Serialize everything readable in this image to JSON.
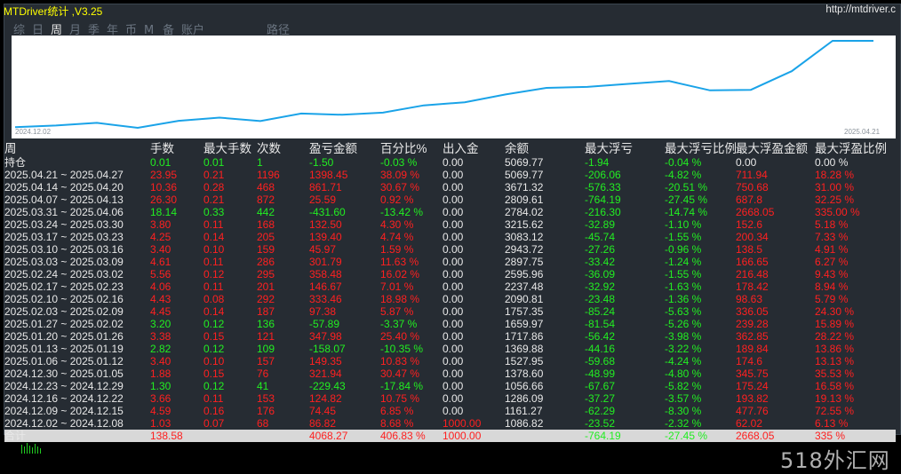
{
  "window": {
    "title": "MTDriver统计 ,V3.25",
    "url": "http://mtdriver.c"
  },
  "tabs": [
    "综",
    "日",
    "周",
    "月",
    "季",
    "年",
    "币",
    "M",
    "备",
    "账户"
  ],
  "active_tab": "周",
  "tab_routes": "路径",
  "chart": {
    "date_start": "2024.12.02",
    "date_end": "2025.04.21",
    "line_color": "#1aa3e8",
    "equity": [
      1086.82,
      1161.27,
      1286.09,
      1056.66,
      1378.6,
      1527.95,
      1369.88,
      1717.86,
      1659.97,
      1757.35,
      2090.81,
      2237.48,
      2595.96,
      2897.75,
      2943.72,
      3083.12,
      3215.62,
      2784.02,
      2809.61,
      3671.32,
      5069.77,
      5069.77
    ]
  },
  "table": {
    "headers": [
      "周",
      "手数",
      "最大手数",
      "次数",
      "盈亏金额",
      "百分比%",
      "出入金",
      "余额",
      "最大浮亏",
      "最大浮亏比例",
      "最大浮盈金额",
      "最大浮盈比例"
    ],
    "rows": [
      {
        "c": [
          "持仓",
          "0.01",
          "0.01",
          "1",
          "-1.50",
          "-0.03 %",
          "0.00",
          "5069.77",
          "-1.94",
          "-0.04 %",
          "0.00",
          "0.00 %"
        ],
        "k": [
          "w",
          "g",
          "g",
          "g",
          "g",
          "g",
          "w",
          "w",
          "g",
          "g",
          "w",
          "w"
        ]
      },
      {
        "c": [
          "2025.04.21 ~ 2025.04.27",
          "23.95",
          "0.21",
          "1196",
          "1398.45",
          "38.09 %",
          "0.00",
          "5069.77",
          "-206.06",
          "-4.82 %",
          "711.94",
          "18.28 %"
        ],
        "k": [
          "w",
          "r",
          "r",
          "r",
          "r",
          "r",
          "w",
          "w",
          "g",
          "g",
          "r",
          "r"
        ]
      },
      {
        "c": [
          "2025.04.14 ~ 2025.04.20",
          "10.36",
          "0.28",
          "468",
          "861.71",
          "30.67 %",
          "0.00",
          "3671.32",
          "-576.33",
          "-20.51 %",
          "750.68",
          "31.00 %"
        ],
        "k": [
          "w",
          "r",
          "r",
          "r",
          "r",
          "r",
          "w",
          "w",
          "g",
          "g",
          "r",
          "r"
        ]
      },
      {
        "c": [
          "2025.04.07 ~ 2025.04.13",
          "26.30",
          "0.21",
          "872",
          "25.59",
          "0.92 %",
          "0.00",
          "2809.61",
          "-764.19",
          "-27.45 %",
          "687.8",
          "32.25 %"
        ],
        "k": [
          "w",
          "r",
          "r",
          "r",
          "r",
          "r",
          "w",
          "w",
          "g",
          "g",
          "r",
          "r"
        ]
      },
      {
        "c": [
          "2025.03.31 ~ 2025.04.06",
          "18.14",
          "0.33",
          "442",
          "-431.60",
          "-13.42 %",
          "0.00",
          "2784.02",
          "-216.30",
          "-14.74 %",
          "2668.05",
          "335.00 %"
        ],
        "k": [
          "w",
          "g",
          "g",
          "g",
          "g",
          "g",
          "w",
          "w",
          "g",
          "g",
          "r",
          "r"
        ]
      },
      {
        "c": [
          "2025.03.24 ~ 2025.03.30",
          "3.80",
          "0.11",
          "168",
          "132.50",
          "4.30 %",
          "0.00",
          "3215.62",
          "-32.89",
          "-1.10 %",
          "152.6",
          "5.18 %"
        ],
        "k": [
          "w",
          "r",
          "r",
          "r",
          "r",
          "r",
          "w",
          "w",
          "g",
          "g",
          "r",
          "r"
        ]
      },
      {
        "c": [
          "2025.03.17 ~ 2025.03.23",
          "4.25",
          "0.14",
          "205",
          "139.40",
          "4.74 %",
          "0.00",
          "3083.12",
          "-45.74",
          "-1.55 %",
          "200.34",
          "7.33 %"
        ],
        "k": [
          "w",
          "r",
          "r",
          "r",
          "r",
          "r",
          "w",
          "w",
          "g",
          "g",
          "r",
          "r"
        ]
      },
      {
        "c": [
          "2025.03.10 ~ 2025.03.16",
          "3.40",
          "0.10",
          "159",
          "45.97",
          "1.59 %",
          "0.00",
          "2943.72",
          "-27.26",
          "-0.96 %",
          "138.5",
          "4.91 %"
        ],
        "k": [
          "w",
          "r",
          "r",
          "r",
          "r",
          "r",
          "w",
          "w",
          "g",
          "g",
          "r",
          "r"
        ]
      },
      {
        "c": [
          "2025.03.03 ~ 2025.03.09",
          "4.61",
          "0.11",
          "286",
          "301.79",
          "11.63 %",
          "0.00",
          "2897.75",
          "-33.42",
          "-1.24 %",
          "166.65",
          "6.27 %"
        ],
        "k": [
          "w",
          "r",
          "r",
          "r",
          "r",
          "r",
          "w",
          "w",
          "g",
          "g",
          "r",
          "r"
        ]
      },
      {
        "c": [
          "2025.02.24 ~ 2025.03.02",
          "5.56",
          "0.12",
          "295",
          "358.48",
          "16.02 %",
          "0.00",
          "2595.96",
          "-36.09",
          "-1.55 %",
          "216.48",
          "9.43 %"
        ],
        "k": [
          "w",
          "r",
          "r",
          "r",
          "r",
          "r",
          "w",
          "w",
          "g",
          "g",
          "r",
          "r"
        ]
      },
      {
        "c": [
          "2025.02.17 ~ 2025.02.23",
          "4.06",
          "0.11",
          "201",
          "146.67",
          "7.01 %",
          "0.00",
          "2237.48",
          "-32.92",
          "-1.63 %",
          "178.42",
          "8.94 %"
        ],
        "k": [
          "w",
          "r",
          "r",
          "r",
          "r",
          "r",
          "w",
          "w",
          "g",
          "g",
          "r",
          "r"
        ]
      },
      {
        "c": [
          "2025.02.10 ~ 2025.02.16",
          "4.43",
          "0.08",
          "292",
          "333.46",
          "18.98 %",
          "0.00",
          "2090.81",
          "-23.48",
          "-1.36 %",
          "98.63",
          "5.79 %"
        ],
        "k": [
          "w",
          "r",
          "r",
          "r",
          "r",
          "r",
          "w",
          "w",
          "g",
          "g",
          "r",
          "r"
        ]
      },
      {
        "c": [
          "2025.02.03 ~ 2025.02.09",
          "4.45",
          "0.14",
          "187",
          "97.38",
          "5.87 %",
          "0.00",
          "1757.35",
          "-85.24",
          "-5.63 %",
          "336.05",
          "24.30 %"
        ],
        "k": [
          "w",
          "r",
          "r",
          "r",
          "r",
          "r",
          "w",
          "w",
          "g",
          "g",
          "r",
          "r"
        ]
      },
      {
        "c": [
          "2025.01.27 ~ 2025.02.02",
          "3.20",
          "0.12",
          "136",
          "-57.89",
          "-3.37 %",
          "0.00",
          "1659.97",
          "-81.54",
          "-5.26 %",
          "239.28",
          "15.89 %"
        ],
        "k": [
          "w",
          "g",
          "g",
          "g",
          "g",
          "g",
          "w",
          "w",
          "g",
          "g",
          "r",
          "r"
        ]
      },
      {
        "c": [
          "2025.01.20 ~ 2025.01.26",
          "3.38",
          "0.15",
          "121",
          "347.98",
          "25.40 %",
          "0.00",
          "1717.86",
          "-56.42",
          "-3.98 %",
          "362.85",
          "28.22 %"
        ],
        "k": [
          "w",
          "r",
          "r",
          "r",
          "r",
          "r",
          "w",
          "w",
          "g",
          "g",
          "r",
          "r"
        ]
      },
      {
        "c": [
          "2025.01.13 ~ 2025.01.19",
          "2.82",
          "0.12",
          "109",
          "-158.07",
          "-10.35 %",
          "0.00",
          "1369.88",
          "-44.16",
          "-3.22 %",
          "189.84",
          "13.86 %"
        ],
        "k": [
          "w",
          "g",
          "g",
          "g",
          "g",
          "g",
          "w",
          "w",
          "g",
          "g",
          "r",
          "r"
        ]
      },
      {
        "c": [
          "2025.01.06 ~ 2025.01.12",
          "3.40",
          "0.10",
          "157",
          "149.35",
          "10.83 %",
          "0.00",
          "1527.95",
          "-59.68",
          "-4.24 %",
          "174.6",
          "13.13 %"
        ],
        "k": [
          "w",
          "r",
          "r",
          "r",
          "r",
          "r",
          "w",
          "w",
          "g",
          "g",
          "r",
          "r"
        ]
      },
      {
        "c": [
          "2024.12.30 ~ 2025.01.05",
          "1.88",
          "0.15",
          "76",
          "321.94",
          "30.47 %",
          "0.00",
          "1378.60",
          "-48.99",
          "-4.80 %",
          "345.75",
          "35.53 %"
        ],
        "k": [
          "w",
          "r",
          "r",
          "r",
          "r",
          "r",
          "w",
          "w",
          "g",
          "g",
          "r",
          "r"
        ]
      },
      {
        "c": [
          "2024.12.23 ~ 2024.12.29",
          "1.30",
          "0.12",
          "41",
          "-229.43",
          "-17.84 %",
          "0.00",
          "1056.66",
          "-67.67",
          "-5.82 %",
          "175.24",
          "16.58 %"
        ],
        "k": [
          "w",
          "g",
          "g",
          "g",
          "g",
          "g",
          "w",
          "w",
          "g",
          "g",
          "r",
          "r"
        ]
      },
      {
        "c": [
          "2024.12.16 ~ 2024.12.22",
          "3.66",
          "0.11",
          "153",
          "124.82",
          "10.75 %",
          "0.00",
          "1286.09",
          "-37.27",
          "-3.57 %",
          "193.82",
          "19.13 %"
        ],
        "k": [
          "w",
          "r",
          "r",
          "r",
          "r",
          "r",
          "w",
          "w",
          "g",
          "g",
          "r",
          "r"
        ]
      },
      {
        "c": [
          "2024.12.09 ~ 2024.12.15",
          "4.59",
          "0.16",
          "176",
          "74.45",
          "6.85 %",
          "0.00",
          "1161.27",
          "-62.29",
          "-8.30 %",
          "477.76",
          "72.55 %"
        ],
        "k": [
          "w",
          "r",
          "r",
          "r",
          "r",
          "r",
          "w",
          "w",
          "g",
          "g",
          "r",
          "r"
        ]
      },
      {
        "c": [
          "2024.12.02 ~ 2024.12.08",
          "1.03",
          "0.07",
          "68",
          "86.82",
          "8.68 %",
          "1000.00",
          "1086.82",
          "-23.52",
          "-2.32 %",
          "62.02",
          "6.13 %"
        ],
        "k": [
          "w",
          "r",
          "r",
          "r",
          "r",
          "r",
          "r",
          "w",
          "g",
          "g",
          "r",
          "r"
        ]
      }
    ],
    "total": {
      "c": [
        "合计",
        "138.58",
        "",
        "",
        "4068.27",
        "406.83 %",
        "1000.00",
        "",
        "-764.19",
        "-27.45 %",
        "2668.05",
        "335 %"
      ],
      "k": [
        "w",
        "r",
        "r",
        "r",
        "r",
        "r",
        "r",
        "w",
        "g",
        "g",
        "r",
        "r"
      ]
    }
  },
  "watermark": "518外汇网"
}
